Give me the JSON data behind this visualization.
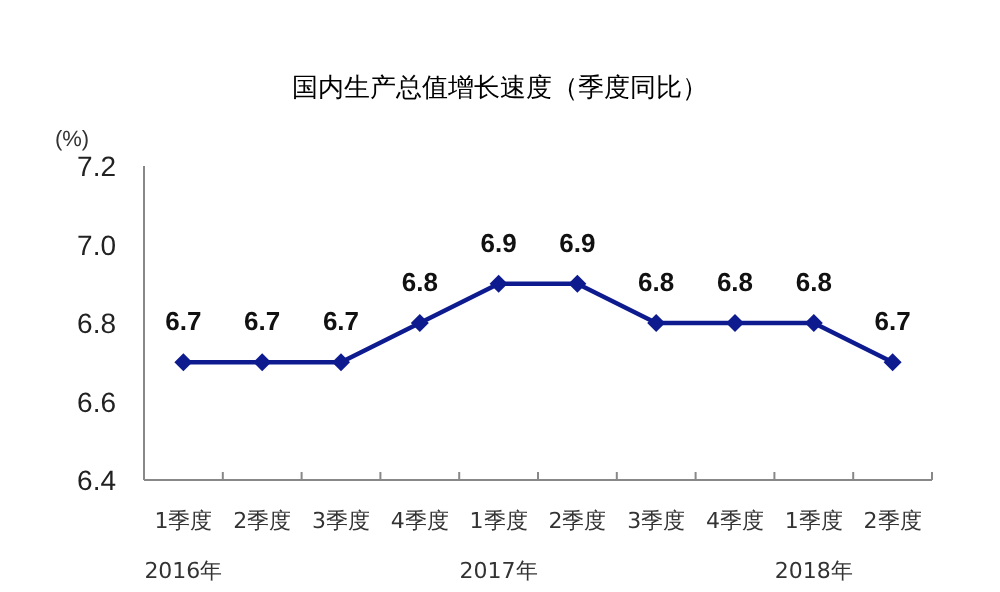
{
  "chart_data": {
    "type": "line",
    "title": "国内生产总值增长速度（季度同比）",
    "ylabel": "(%)",
    "categories": [
      "1季度",
      "2季度",
      "3季度",
      "4季度",
      "1季度",
      "2季度",
      "3季度",
      "4季度",
      "1季度",
      "2季度"
    ],
    "series": [
      {
        "color": "#0d1b8f",
        "values": [
          6.7,
          6.7,
          6.7,
          6.8,
          6.9,
          6.9,
          6.8,
          6.8,
          6.8,
          6.7
        ]
      }
    ],
    "ylim": [
      6.4,
      7.2
    ],
    "yticks": [
      6.4,
      6.6,
      6.8,
      {
        "value": 7,
        "label": "7.0"
      },
      7.2
    ],
    "annotations": [
      "2016年",
      "2017年",
      "2018年"
    ],
    "data_labels": true,
    "marker": "diamond",
    "line_style": "solid",
    "grid": false
  }
}
